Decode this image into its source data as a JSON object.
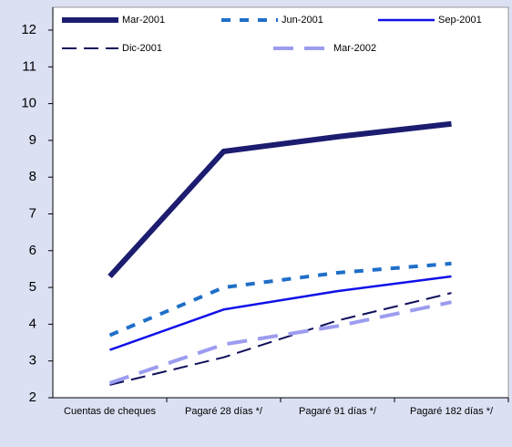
{
  "chart_data": {
    "type": "line",
    "categories": [
      "Cuentas de cheques",
      "Pagaré 28 días */",
      "Pagaré 91 días */",
      "Pagaré 182 días */"
    ],
    "series": [
      {
        "name": "Mar-2001",
        "color": "#1c1c70",
        "values": [
          5.3,
          8.7,
          9.1,
          9.45
        ]
      },
      {
        "name": "Jun-2001",
        "color": "#1f6fc8",
        "values": [
          3.7,
          5.0,
          5.4,
          5.65
        ]
      },
      {
        "name": "Sep-2001",
        "color": "#1010e8",
        "values": [
          3.3,
          4.4,
          4.9,
          5.3
        ]
      },
      {
        "name": "Dic-2001",
        "color": "#10105c",
        "values": [
          2.35,
          3.1,
          4.1,
          4.85
        ]
      },
      {
        "name": "Mar-2002",
        "color": "#9c9cf0",
        "values": [
          2.4,
          3.45,
          3.95,
          4.6
        ]
      }
    ],
    "ylim": [
      2,
      12.1
    ],
    "yticks": [
      2,
      3,
      4,
      5,
      6,
      7,
      8,
      9,
      10,
      11,
      12
    ]
  }
}
